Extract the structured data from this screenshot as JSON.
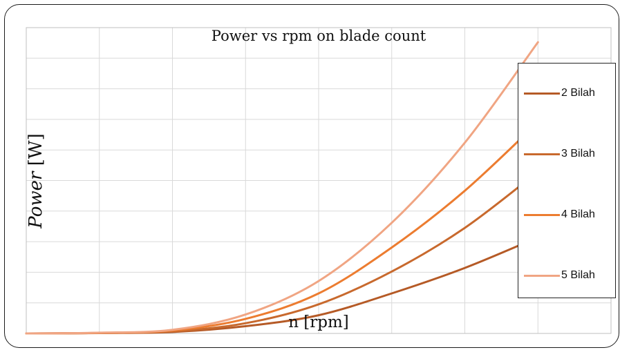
{
  "chart_data": {
    "type": "line",
    "title": "Power vs rpm on blade count",
    "xlabel": "n [rpm]",
    "ylabel": {
      "italic": "Power",
      "rest": " [W]"
    },
    "tick_labels_visible": false,
    "grid": true,
    "legend_position": "right",
    "x": [
      0,
      10,
      20,
      30,
      40,
      50,
      60,
      70
    ],
    "series": [
      {
        "name": "2 Bilah",
        "color": "#b55a26",
        "values": [
          0,
          0.5,
          2,
          10,
          25,
          55,
          90,
          132
        ]
      },
      {
        "name": "3 Bilah",
        "color": "#c8692d",
        "values": [
          0,
          0.6,
          3,
          14,
          40,
          85,
          145,
          222
        ]
      },
      {
        "name": "4 Bilah",
        "color": "#ec7c30",
        "values": [
          0,
          0.8,
          4,
          20,
          55,
          118,
          196,
          290
        ]
      },
      {
        "name": "5 Bilah",
        "color": "#f0a583",
        "values": [
          0,
          1,
          5,
          26,
          72,
          152,
          262,
          400
        ]
      }
    ],
    "xlim": [
      0,
      80
    ],
    "ylim": [
      0,
      420
    ]
  }
}
